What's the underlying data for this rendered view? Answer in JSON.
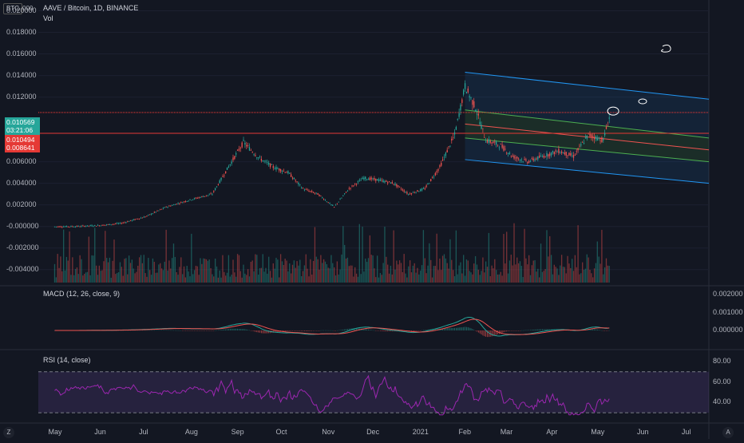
{
  "header": {
    "symbol": "AAVE / Bitcoin, 1D, BINANCE",
    "volume_label": "Vol",
    "currency_badge": "BTC"
  },
  "price_axis_labels": [
    "0.020000",
    "0.018000",
    "0.016000",
    "0.014000",
    "0.012000",
    "0.006000",
    "0.004000",
    "0.002000",
    "-0.000000",
    "-0.002000",
    "-0.004000"
  ],
  "price_axis_top_partial": "000",
  "badges": {
    "last_price": "0.010569",
    "countdown": "03:21:06",
    "red_level": "0.010494",
    "red_level2": "0.008641"
  },
  "macd": {
    "title": "MACD (12, 26, close, 9)",
    "axis_labels": [
      "0.002000",
      "0.001000",
      "0.000000"
    ]
  },
  "rsi": {
    "title": "RSI (14, close)",
    "axis_labels": [
      "80.00",
      "60.00",
      "40.00"
    ]
  },
  "time_axis": [
    "May",
    "Jun",
    "Jul",
    "Aug",
    "Sep",
    "Oct",
    "Nov",
    "Dec",
    "2021",
    "Feb",
    "Mar",
    "Apr",
    "May",
    "Jun",
    "Jul"
  ],
  "corner_buttons": {
    "left": "Z",
    "right": "A"
  },
  "colors": {
    "up": "#26a69a",
    "down": "#ef5350",
    "macd": "#26a69a",
    "signal": "#ef5350",
    "rsi": "#9c27b0",
    "channel": "#2196f3",
    "bg": "#131722"
  },
  "chart_data": {
    "type": "candlestick",
    "title": "AAVE / Bitcoin, 1D, BINANCE",
    "price_axis_range": [
      -0.0055,
      0.021
    ],
    "horizontal_levels": [
      0.010569,
      0.008641
    ],
    "series": [
      {
        "name": "price",
        "points": [
          [
            "2020-05-01",
            -2e-05
          ],
          [
            "2020-05-15",
            0.0
          ],
          [
            "2020-06-01",
            0.0001
          ],
          [
            "2020-06-15",
            0.0003
          ],
          [
            "2020-07-01",
            0.0009
          ],
          [
            "2020-07-15",
            0.0018
          ],
          [
            "2020-08-01",
            0.0025
          ],
          [
            "2020-08-15",
            0.003
          ],
          [
            "2020-08-28",
            0.006
          ],
          [
            "2020-09-05",
            0.0078
          ],
          [
            "2020-09-15",
            0.0064
          ],
          [
            "2020-09-25",
            0.0055
          ],
          [
            "2020-10-05",
            0.005
          ],
          [
            "2020-10-15",
            0.0035
          ],
          [
            "2020-10-25",
            0.003
          ],
          [
            "2020-11-05",
            0.0018
          ],
          [
            "2020-11-15",
            0.0035
          ],
          [
            "2020-11-25",
            0.0045
          ],
          [
            "2020-12-05",
            0.0043
          ],
          [
            "2020-12-15",
            0.004
          ],
          [
            "2020-12-25",
            0.003
          ],
          [
            "2021-01-05",
            0.0035
          ],
          [
            "2021-01-15",
            0.0055
          ],
          [
            "2021-01-25",
            0.0085
          ],
          [
            "2021-02-01",
            0.013
          ],
          [
            "2021-02-08",
            0.011
          ],
          [
            "2021-02-15",
            0.008
          ],
          [
            "2021-02-25",
            0.0075
          ],
          [
            "2021-03-05",
            0.0065
          ],
          [
            "2021-03-15",
            0.006
          ],
          [
            "2021-03-25",
            0.0065
          ],
          [
            "2021-04-05",
            0.007
          ],
          [
            "2021-04-15",
            0.0065
          ],
          [
            "2021-04-25",
            0.0085
          ],
          [
            "2021-05-05",
            0.008
          ],
          [
            "2021-05-10",
            0.0106
          ]
        ]
      }
    ]
  }
}
